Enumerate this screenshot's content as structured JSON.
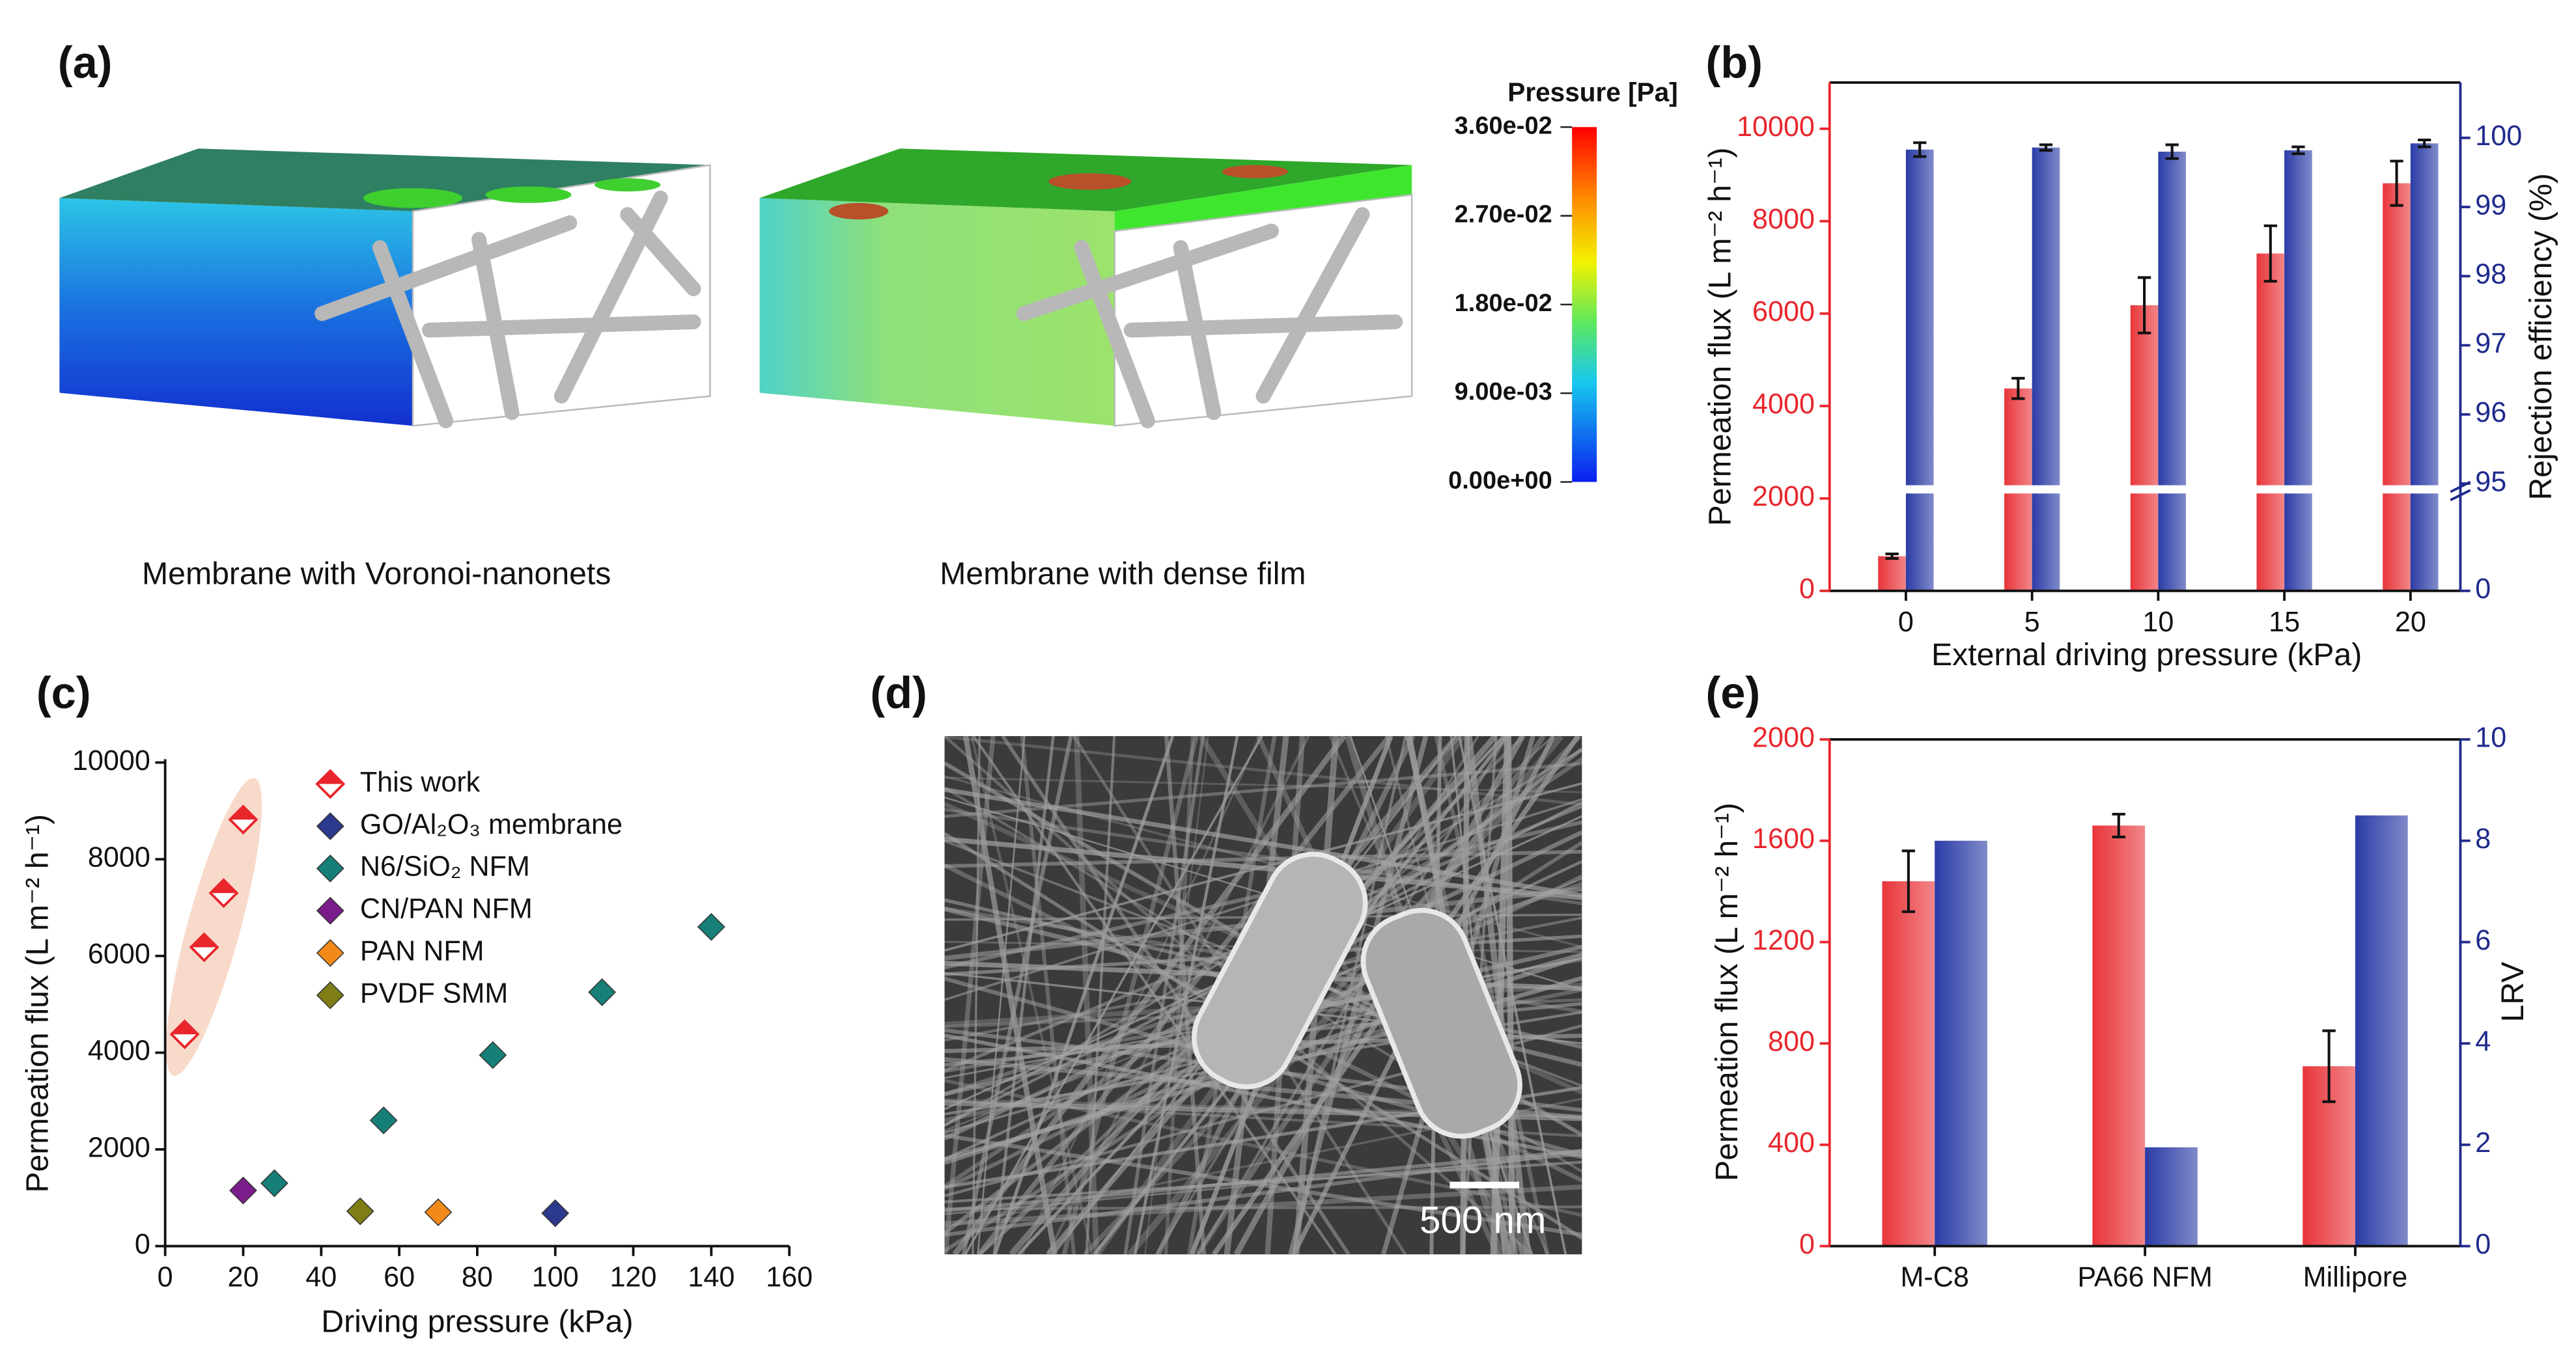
{
  "panel_a": {
    "panel": "(a)",
    "colorbar_title": "Pressure [Pa]",
    "colorbar_lim": [
      0,
      0.036
    ],
    "colorbar_ticks": [
      {
        "value": 0.036,
        "label": "3.60e-02"
      },
      {
        "value": 0.027,
        "label": "2.70e-02"
      },
      {
        "value": 0.018,
        "label": "1.80e-02"
      },
      {
        "value": 0.009,
        "label": "9.00e-03"
      },
      {
        "value": 0,
        "label": "0.00e+00"
      }
    ],
    "captions": [
      "Membrane with Voronoi-nanonets",
      "Membrane with dense film"
    ]
  },
  "panel_d": {
    "panel": "(d)",
    "scale_bar": "500 nm"
  },
  "chart_data": [
    {
      "type": "bar",
      "panel": "(b)",
      "xlabel": "External driving pressure (kPa)",
      "ylabel": "Permeation flux (L m⁻² h⁻¹)",
      "y2label": "Rejection efficiency (%)",
      "categories": [
        "0",
        "5",
        "10",
        "15",
        "20"
      ],
      "ylim": [
        0,
        11000
      ],
      "yticks": [
        0,
        2000,
        4000,
        6000,
        8000,
        10000
      ],
      "y2lim": [
        0,
        100.8
      ],
      "y2ticks": [
        0,
        95,
        96,
        97,
        98,
        99,
        100
      ],
      "y2_break": 95,
      "y_color": "#e8262c",
      "y2_color": "#1f2a8c",
      "series": [
        {
          "color": "#e8353a",
          "values": [
            750,
            4380,
            6180,
            7300,
            8820
          ],
          "errors": [
            50,
            220,
            600,
            600,
            480
          ]
        },
        {
          "color": "#2b3ca6",
          "axis": "y2",
          "values": [
            99.83,
            99.86,
            99.8,
            99.82,
            99.92
          ],
          "errors": [
            0.1,
            0.04,
            0.1,
            0.05,
            0.05
          ]
        }
      ]
    },
    {
      "type": "scatter",
      "panel": "(c)",
      "xlabel": "Driving pressure (kPa)",
      "ylabel": "Permeation flux (L m⁻² h⁻¹)",
      "xlim": [
        0,
        160
      ],
      "xticks": [
        0,
        20,
        40,
        60,
        80,
        100,
        120,
        140,
        160
      ],
      "ylim": [
        0,
        10000
      ],
      "yticks": [
        0,
        2000,
        4000,
        6000,
        8000,
        10000
      ],
      "series": [
        {
          "name": "This work",
          "color": "#e8262c",
          "marker": "half",
          "x": [
            5,
            10,
            15,
            20
          ],
          "values": [
            4380,
            6180,
            7300,
            8820
          ]
        },
        {
          "name": "GO/Al₂O₃ membrane",
          "color": "#2b3a8f",
          "x": [
            100
          ],
          "values": [
            680
          ]
        },
        {
          "name": "N6/SiO₂ NFM",
          "color": "#168078",
          "x": [
            28,
            56,
            84,
            112,
            140
          ],
          "values": [
            1300,
            2600,
            3950,
            5250,
            6600
          ]
        },
        {
          "name": "CN/PAN NFM",
          "color": "#7b1c8c",
          "x": [
            20
          ],
          "values": [
            1150
          ]
        },
        {
          "name": "PAN NFM",
          "color": "#f28a1a",
          "x": [
            70
          ],
          "values": [
            700
          ]
        },
        {
          "name": "PVDF SMM",
          "color": "#7e7d16",
          "x": [
            50
          ],
          "values": [
            720
          ]
        }
      ]
    },
    {
      "type": "bar",
      "panel": "(e)",
      "ylabel": "Permeation flux (L m⁻² h⁻¹)",
      "y2label": "LRV",
      "categories": [
        "M-C8",
        "PA66 NFM",
        "Millipore"
      ],
      "ylim": [
        0,
        2000
      ],
      "yticks": [
        0,
        400,
        800,
        1200,
        1600,
        2000
      ],
      "y2lim": [
        0,
        10
      ],
      "y2ticks": [
        0,
        2,
        4,
        6,
        8,
        10
      ],
      "y_color": "#e8262c",
      "y2_color": "#1f2a8c",
      "series": [
        {
          "color": "#e8353a",
          "values": [
            1440,
            1660,
            710
          ],
          "errors": [
            120,
            45,
            140
          ]
        },
        {
          "color": "#2b3ca6",
          "axis": "y2",
          "values": [
            8,
            1.95,
            8.5
          ]
        }
      ]
    }
  ]
}
